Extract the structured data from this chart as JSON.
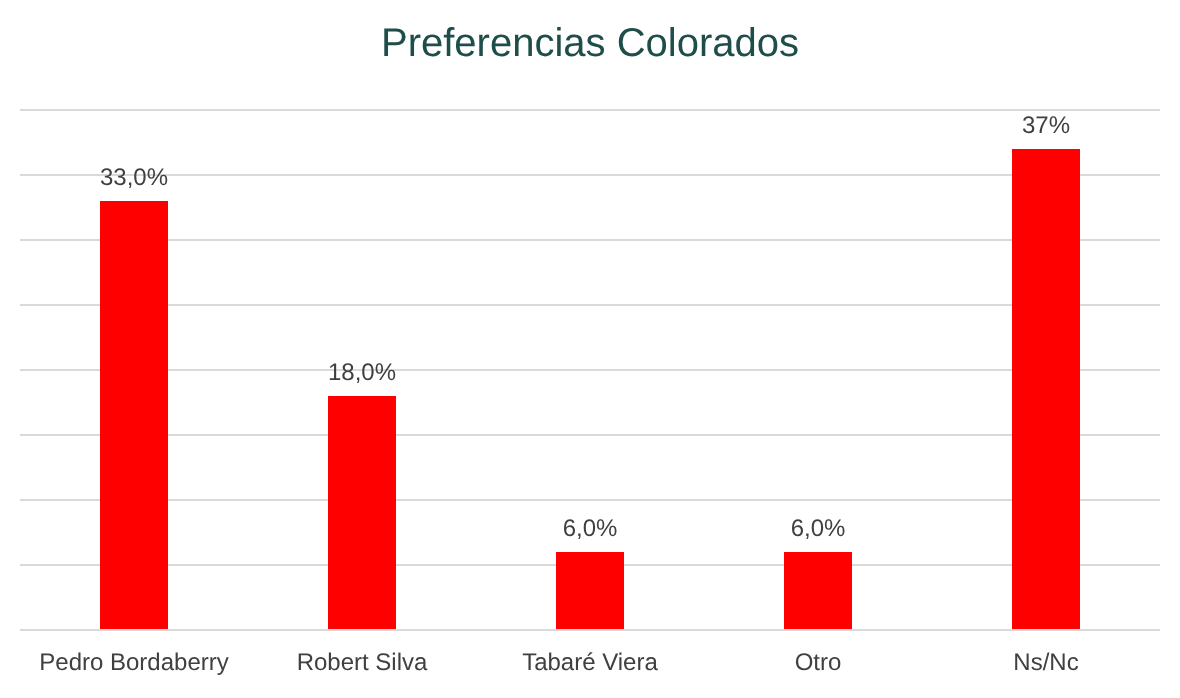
{
  "chart_data": {
    "type": "bar",
    "title": "Preferencias Colorados",
    "categories": [
      "Pedro Bordaberry",
      "Robert Silva",
      "Tabaré Viera",
      "Otro",
      "Ns/Nc"
    ],
    "values": [
      33,
      18,
      6,
      6,
      37
    ],
    "value_labels": [
      "33,0%",
      "18,0%",
      "6,0%",
      "6,0%",
      "37%"
    ],
    "color": "#ff0000",
    "ylim": [
      0,
      40
    ],
    "yticks": [
      {
        "value": 0,
        "label": null
      },
      {
        "value": 5,
        "label": null
      },
      {
        "value": 10,
        "label": null
      },
      {
        "value": 15,
        "label": null
      },
      {
        "value": 20,
        "label": null
      },
      {
        "value": 25,
        "label": null
      },
      {
        "value": 30,
        "label": null
      },
      {
        "value": 35,
        "label": null
      },
      {
        "value": 40,
        "label": null
      }
    ],
    "grid": "y",
    "tick_labels": "x"
  }
}
